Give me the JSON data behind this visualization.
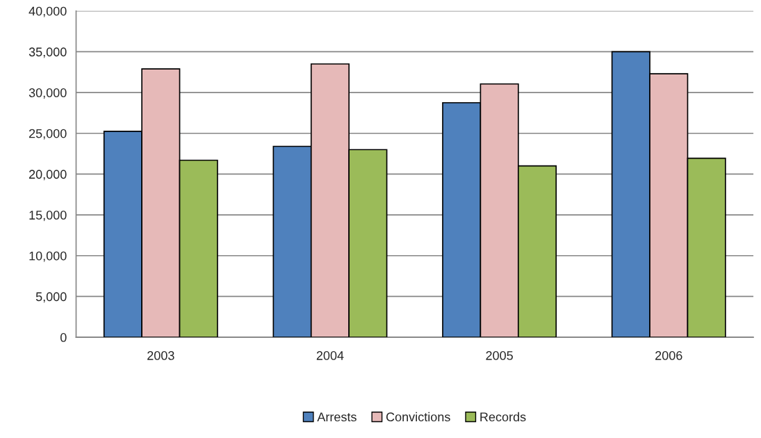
{
  "chart_data": {
    "type": "bar",
    "categories": [
      "2003",
      "2004",
      "2005",
      "2006"
    ],
    "series": [
      {
        "name": "Arrests",
        "color": "#4f81bd",
        "values": [
          25250,
          23400,
          28750,
          35000
        ]
      },
      {
        "name": "Convictions",
        "color": "#e6b9b8",
        "values": [
          32900,
          33500,
          31050,
          32300
        ]
      },
      {
        "name": "Records",
        "color": "#9bbb59",
        "values": [
          21700,
          23000,
          21000,
          21950
        ]
      }
    ],
    "ylim": [
      0,
      40000
    ],
    "yticks": [
      {
        "value": 0,
        "label": "0"
      },
      {
        "value": 5000,
        "label": "5,000"
      },
      {
        "value": 10000,
        "label": "10,000"
      },
      {
        "value": 15000,
        "label": "15,000"
      },
      {
        "value": 20000,
        "label": "20,000"
      },
      {
        "value": 25000,
        "label": "25,000"
      },
      {
        "value": 30000,
        "label": "30,000"
      },
      {
        "value": 35000,
        "label": "35,000"
      },
      {
        "value": 40000,
        "label": "40,000"
      }
    ],
    "grid": "y",
    "legend": "bottom"
  }
}
